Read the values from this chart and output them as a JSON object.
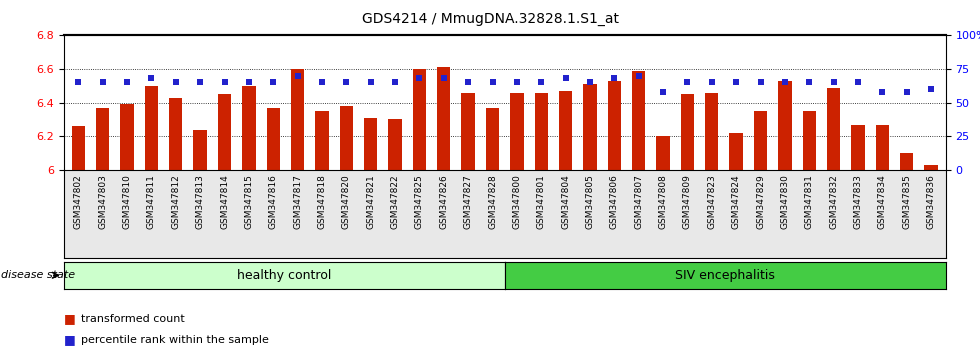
{
  "title": "GDS4214 / MmugDNA.32828.1.S1_at",
  "samples": [
    "GSM347802",
    "GSM347803",
    "GSM347810",
    "GSM347811",
    "GSM347812",
    "GSM347813",
    "GSM347814",
    "GSM347815",
    "GSM347816",
    "GSM347817",
    "GSM347818",
    "GSM347820",
    "GSM347821",
    "GSM347822",
    "GSM347825",
    "GSM347826",
    "GSM347827",
    "GSM347828",
    "GSM347800",
    "GSM347801",
    "GSM347804",
    "GSM347805",
    "GSM347806",
    "GSM347807",
    "GSM347808",
    "GSM347809",
    "GSM347823",
    "GSM347824",
    "GSM347829",
    "GSM347830",
    "GSM347831",
    "GSM347832",
    "GSM347833",
    "GSM347834",
    "GSM347835",
    "GSM347836"
  ],
  "bar_values": [
    6.26,
    6.37,
    6.39,
    6.5,
    6.43,
    6.24,
    6.45,
    6.5,
    6.37,
    6.6,
    6.35,
    6.38,
    6.31,
    6.3,
    6.6,
    6.61,
    6.46,
    6.37,
    6.46,
    6.46,
    6.47,
    6.51,
    6.53,
    6.59,
    6.2,
    6.45,
    6.46,
    6.22,
    6.35,
    6.53,
    6.35,
    6.49,
    6.27,
    6.27,
    6.1,
    6.03
  ],
  "percentile_values": [
    65,
    65,
    65,
    68,
    65,
    65,
    65,
    65,
    65,
    70,
    65,
    65,
    65,
    65,
    68,
    68,
    65,
    65,
    65,
    65,
    68,
    65,
    68,
    70,
    58,
    65,
    65,
    65,
    65,
    65,
    65,
    65,
    65,
    58,
    58,
    60
  ],
  "ylim_left": [
    6.0,
    6.8
  ],
  "ylim_right": [
    0,
    100
  ],
  "yticks_left": [
    6.0,
    6.2,
    6.4,
    6.6,
    6.8
  ],
  "ytick_labels_left": [
    "6",
    "6.2",
    "6.4",
    "6.6",
    "6.8"
  ],
  "yticks_right": [
    0,
    25,
    50,
    75,
    100
  ],
  "ytick_labels_right": [
    "0",
    "25",
    "50",
    "75",
    "100%"
  ],
  "bar_color": "#cc2200",
  "dot_color": "#2222cc",
  "healthy_color": "#ccffcc",
  "siv_color": "#44cc44",
  "healthy_label": "healthy control",
  "siv_label": "SIV encephalitis",
  "disease_label": "disease state",
  "n_healthy": 18,
  "n_total": 36,
  "legend_bar_label": "transformed count",
  "legend_dot_label": "percentile rank within the sample",
  "bar_width": 0.55,
  "grid_yticks": [
    6.2,
    6.4,
    6.6
  ]
}
